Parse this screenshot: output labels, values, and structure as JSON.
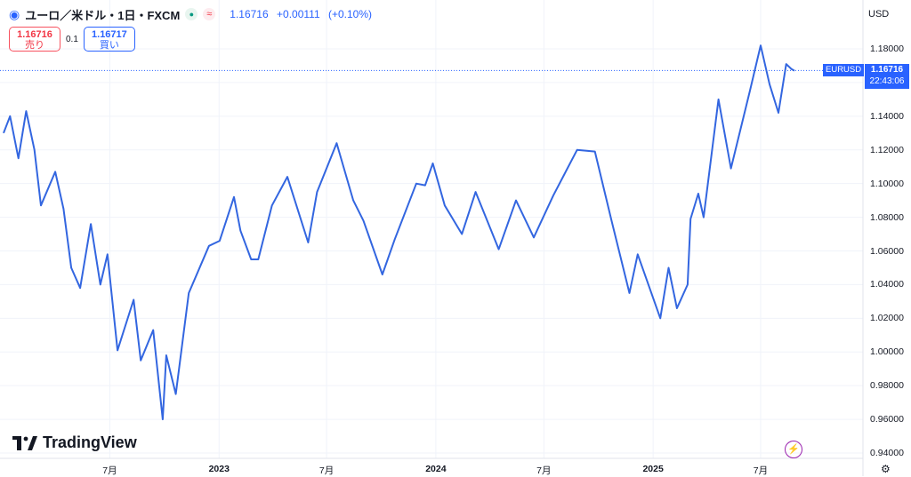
{
  "header": {
    "symbol_title": "ユーロ／米ドル・1日・FXCM",
    "market_icon_symbol": "≈",
    "price": "1.16716",
    "change": "+0.00111",
    "change_pct": "(+0.10%)"
  },
  "trade": {
    "sell_price": "1.16716",
    "sell_label": "売り",
    "spread": "0.1",
    "buy_price": "1.16717",
    "buy_label": "買い"
  },
  "currency_label": "USD",
  "price_tag": {
    "symbol": "EURUSD",
    "price": "1.16716",
    "countdown": "22:43:06"
  },
  "brand": "TradingView",
  "colors": {
    "line": "#3366e0",
    "accent": "#2962ff",
    "sell": "#f23645",
    "grid": "#f0f3fa"
  },
  "chart_data": {
    "type": "line",
    "series": [
      {
        "values": [
          [
            "2022-01-03",
            1.13
          ],
          [
            "2022-01-14",
            1.14
          ],
          [
            "2022-01-28",
            1.115
          ],
          [
            "2022-02-10",
            1.143
          ],
          [
            "2022-02-24",
            1.12
          ],
          [
            "2022-03-07",
            1.087
          ],
          [
            "2022-03-31",
            1.107
          ],
          [
            "2022-04-14",
            1.085
          ],
          [
            "2022-04-27",
            1.05
          ],
          [
            "2022-05-12",
            1.038
          ],
          [
            "2022-05-30",
            1.076
          ],
          [
            "2022-06-15",
            1.04
          ],
          [
            "2022-06-27",
            1.058
          ],
          [
            "2022-07-14",
            1.001
          ],
          [
            "2022-08-10",
            1.031
          ],
          [
            "2022-08-22",
            0.995
          ],
          [
            "2022-09-12",
            1.013
          ],
          [
            "2022-09-28",
            0.96
          ],
          [
            "2022-10-04",
            0.998
          ],
          [
            "2022-10-20",
            0.975
          ],
          [
            "2022-11-11",
            1.035
          ],
          [
            "2022-12-15",
            1.063
          ],
          [
            "2023-01-02",
            1.066
          ],
          [
            "2023-01-26",
            1.092
          ],
          [
            "2023-02-06",
            1.072
          ],
          [
            "2023-02-24",
            1.055
          ],
          [
            "2023-03-08",
            1.055
          ],
          [
            "2023-03-31",
            1.087
          ],
          [
            "2023-04-26",
            1.104
          ],
          [
            "2023-05-31",
            1.065
          ],
          [
            "2023-06-15",
            1.095
          ],
          [
            "2023-07-18",
            1.124
          ],
          [
            "2023-08-15",
            1.09
          ],
          [
            "2023-09-01",
            1.078
          ],
          [
            "2023-10-03",
            1.046
          ],
          [
            "2023-10-24",
            1.067
          ],
          [
            "2023-11-29",
            1.1
          ],
          [
            "2023-12-14",
            1.099
          ],
          [
            "2023-12-27",
            1.112
          ],
          [
            "2024-01-16",
            1.087
          ],
          [
            "2024-02-14",
            1.07
          ],
          [
            "2024-03-08",
            1.095
          ],
          [
            "2024-04-16",
            1.061
          ],
          [
            "2024-05-15",
            1.09
          ],
          [
            "2024-06-14",
            1.068
          ],
          [
            "2024-07-17",
            1.093
          ],
          [
            "2024-08-26",
            1.12
          ],
          [
            "2024-09-25",
            1.119
          ],
          [
            "2024-10-23",
            1.078
          ],
          [
            "2024-11-22",
            1.035
          ],
          [
            "2024-12-06",
            1.058
          ],
          [
            "2025-01-13",
            1.02
          ],
          [
            "2025-01-27",
            1.05
          ],
          [
            "2025-02-10",
            1.026
          ],
          [
            "2025-02-28",
            1.04
          ],
          [
            "2025-03-05",
            1.079
          ],
          [
            "2025-03-18",
            1.094
          ],
          [
            "2025-03-27",
            1.08
          ],
          [
            "2025-04-21",
            1.15
          ],
          [
            "2025-05-12",
            1.109
          ],
          [
            "2025-06-13",
            1.155
          ],
          [
            "2025-07-01",
            1.182
          ],
          [
            "2025-07-16",
            1.159
          ],
          [
            "2025-07-31",
            1.142
          ],
          [
            "2025-08-13",
            1.171
          ],
          [
            "2025-08-22",
            1.168
          ],
          [
            "2025-08-27",
            1.167
          ]
        ]
      }
    ],
    "ylim": [
      0.94,
      1.18
    ],
    "yticks": [
      "1.18000",
      "1.16000",
      "1.14000",
      "1.12000",
      "1.10000",
      "1.08000",
      "1.06000",
      "1.04000",
      "1.02000",
      "1.00000",
      "0.98000",
      "0.96000",
      "0.94000"
    ],
    "xticks": [
      {
        "label": "7月",
        "date": "2022-07-01",
        "bold": false
      },
      {
        "label": "2023",
        "date": "2023-01-01",
        "bold": true
      },
      {
        "label": "7月",
        "date": "2023-07-01",
        "bold": false
      },
      {
        "label": "2024",
        "date": "2024-01-01",
        "bold": true
      },
      {
        "label": "7月",
        "date": "2024-07-01",
        "bold": false
      },
      {
        "label": "2025",
        "date": "2025-01-01",
        "bold": true
      },
      {
        "label": "7月",
        "date": "2025-07-01",
        "bold": false
      }
    ],
    "last_value": 1.16716,
    "grid": true
  }
}
